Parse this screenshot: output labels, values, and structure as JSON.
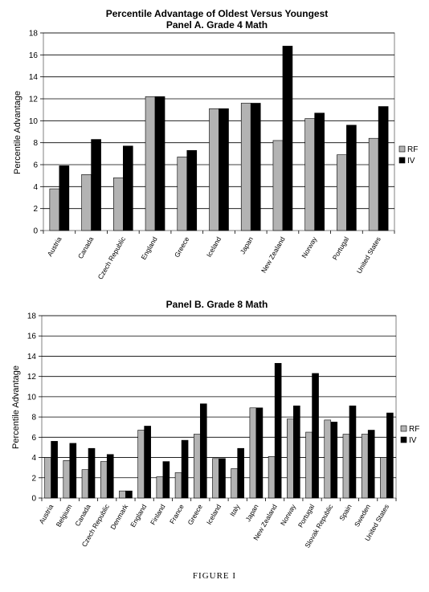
{
  "figure_caption": "FIGURE I",
  "chart_data": [
    {
      "type": "bar",
      "title": "Percentile Advantage of Oldest Versus Youngest",
      "subtitle": "Panel A. Grade 4 Math",
      "xlabel": "",
      "ylabel": "Percentile Advantage",
      "ylim": [
        0,
        18
      ],
      "yticks": [
        0,
        2,
        4,
        6,
        8,
        10,
        12,
        14,
        16,
        18
      ],
      "grid": true,
      "legend_position": "right",
      "categories": [
        "Austria",
        "Canada",
        "Czech Republic",
        "England",
        "Greece",
        "Iceland",
        "Japan",
        "New Zealand",
        "Norway",
        "Portugal",
        "United States"
      ],
      "series": [
        {
          "name": "RF",
          "color": "#b3b3b3",
          "values": [
            3.8,
            5.1,
            4.8,
            12.2,
            6.7,
            11.1,
            11.6,
            8.2,
            10.2,
            6.9,
            8.4
          ]
        },
        {
          "name": "IV",
          "color": "#000000",
          "values": [
            5.9,
            8.3,
            7.7,
            12.2,
            7.3,
            11.1,
            11.6,
            16.8,
            10.7,
            9.6,
            11.3
          ]
        }
      ]
    },
    {
      "type": "bar",
      "title": "Panel B. Grade 8 Math",
      "xlabel": "",
      "ylabel": "Percentile Advantage",
      "ylim": [
        0,
        18
      ],
      "yticks": [
        0,
        2,
        4,
        6,
        8,
        10,
        12,
        14,
        16,
        18
      ],
      "grid": true,
      "legend_position": "right",
      "categories": [
        "Austria",
        "Belgium",
        "Canada",
        "Czech Republic",
        "Denmark",
        "England",
        "Finland",
        "France",
        "Greece",
        "Iceland",
        "Italy",
        "Japan",
        "New Zealand",
        "Norway",
        "Portugal",
        "Slovak Republic",
        "Spain",
        "Sweden",
        "United States"
      ],
      "series": [
        {
          "name": "RF",
          "color": "#b3b3b3",
          "values": [
            4.0,
            3.7,
            2.8,
            3.6,
            0.7,
            6.7,
            2.1,
            2.5,
            6.3,
            3.9,
            2.9,
            8.9,
            4.1,
            7.8,
            6.5,
            7.7,
            6.3,
            6.3,
            4.0
          ]
        },
        {
          "name": "IV",
          "color": "#000000",
          "values": [
            5.6,
            5.4,
            4.9,
            4.3,
            0.7,
            7.1,
            3.6,
            5.7,
            9.3,
            3.9,
            4.9,
            8.9,
            13.3,
            9.1,
            12.3,
            7.5,
            9.1,
            6.7,
            8.4
          ]
        }
      ]
    }
  ]
}
